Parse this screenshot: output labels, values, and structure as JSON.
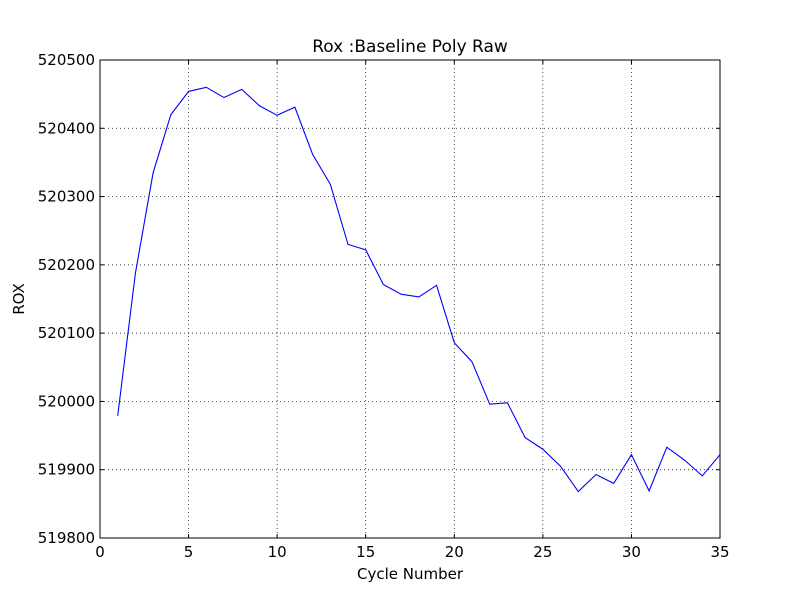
{
  "chart_data": {
    "type": "line",
    "title": "Rox :Baseline Poly Raw",
    "xlabel": "Cycle Number",
    "ylabel": "ROX",
    "xlim": [
      0,
      35
    ],
    "ylim": [
      519800,
      520500
    ],
    "xticks": [
      0,
      5,
      10,
      15,
      20,
      25,
      30,
      35
    ],
    "yticks": [
      519800,
      519900,
      520000,
      520100,
      520200,
      520300,
      520400,
      520500
    ],
    "grid": true,
    "grid_style": "dotted",
    "line_color": "#0000ff",
    "series": [
      {
        "x": [
          1,
          2,
          3,
          4,
          5,
          6,
          7,
          8,
          9,
          10,
          11,
          12,
          13,
          14,
          15,
          16,
          17,
          18,
          19,
          20,
          21,
          22,
          23,
          24,
          25,
          26,
          27,
          28,
          29,
          30,
          31,
          32,
          33,
          34,
          35
        ],
        "y": [
          519979,
          520188,
          520335,
          520420,
          520454,
          520460,
          520445,
          520457,
          520433,
          520419,
          520431,
          520362,
          520318,
          520230,
          520222,
          520171,
          520157,
          520153,
          520170,
          520086,
          520058,
          519996,
          519998,
          519947,
          519930,
          519905,
          519868,
          519893,
          519880,
          519922,
          519869,
          519933,
          519914,
          519891,
          519922
        ]
      }
    ]
  }
}
